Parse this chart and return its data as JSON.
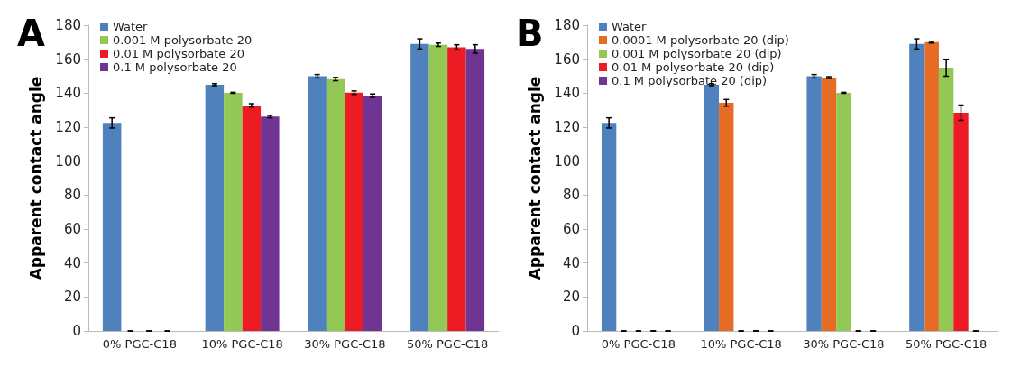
{
  "chart_data": [
    {
      "type": "bar",
      "title": "A",
      "ylabel": "Apparent contact angle",
      "categories": [
        "0% PGC-C18",
        "10% PGC-C18",
        "30% PGC-C18",
        "50% PGC-C18"
      ],
      "ylim": [
        0,
        180
      ],
      "yticks": [
        0,
        20,
        40,
        60,
        80,
        100,
        120,
        140,
        160,
        180
      ],
      "grid": false,
      "legend": "top left",
      "series": [
        {
          "name": "Water",
          "color": "#4f81bd",
          "values": [
            122.5,
            145,
            150,
            169
          ],
          "errors": [
            3,
            0.6,
            1,
            3
          ]
        },
        {
          "name": "0.001 M polysorbate 20",
          "color": "#92c853",
          "values": [
            0,
            140.2,
            148.3,
            168.5
          ],
          "errors": [
            0,
            0.3,
            1,
            1
          ]
        },
        {
          "name": "0.01 M polysorbate 20",
          "color": "#ed1c24",
          "values": [
            0,
            132.8,
            140.3,
            167
          ],
          "errors": [
            0,
            1,
            1,
            1.5
          ]
        },
        {
          "name": "0.1 M polysorbate 20",
          "color": "#703593",
          "values": [
            0,
            126.2,
            138.5,
            166
          ],
          "errors": [
            0,
            0.7,
            1,
            2.5
          ]
        }
      ]
    },
    {
      "type": "bar",
      "title": "B",
      "ylabel": "Apparent contact angle",
      "categories": [
        "0% PGC-C18",
        "10% PGC-C18",
        "30% PGC-C18",
        "50% PGC-C18"
      ],
      "ylim": [
        0,
        180
      ],
      "yticks": [
        0,
        20,
        40,
        60,
        80,
        100,
        120,
        140,
        160,
        180
      ],
      "grid": false,
      "legend": "top left",
      "series": [
        {
          "name": "Water",
          "color": "#4f81bd",
          "values": [
            122.5,
            145,
            150,
            169
          ],
          "errors": [
            3,
            0.6,
            1,
            3
          ]
        },
        {
          "name": "0.0001 M polysorbate 20 (dip)",
          "color": "#e46c24",
          "values": [
            0,
            134.3,
            149.2,
            170
          ],
          "errors": [
            0,
            2,
            0.5,
            0.5
          ]
        },
        {
          "name": "0.001 M polysorbate 20 (dip)",
          "color": "#92c853",
          "values": [
            0,
            0,
            140.2,
            155
          ],
          "errors": [
            0,
            0,
            0.3,
            5
          ]
        },
        {
          "name": "0.01 M polysorbate 20 (dip)",
          "color": "#ed1c24",
          "values": [
            0,
            0,
            0,
            128.5
          ],
          "errors": [
            0,
            0,
            0,
            4.5
          ]
        },
        {
          "name": "0.1 M polysorbate 20 (dip)",
          "color": "#703593",
          "values": [
            0,
            0,
            0,
            0
          ],
          "errors": [
            0,
            0,
            0,
            0
          ]
        }
      ]
    }
  ]
}
